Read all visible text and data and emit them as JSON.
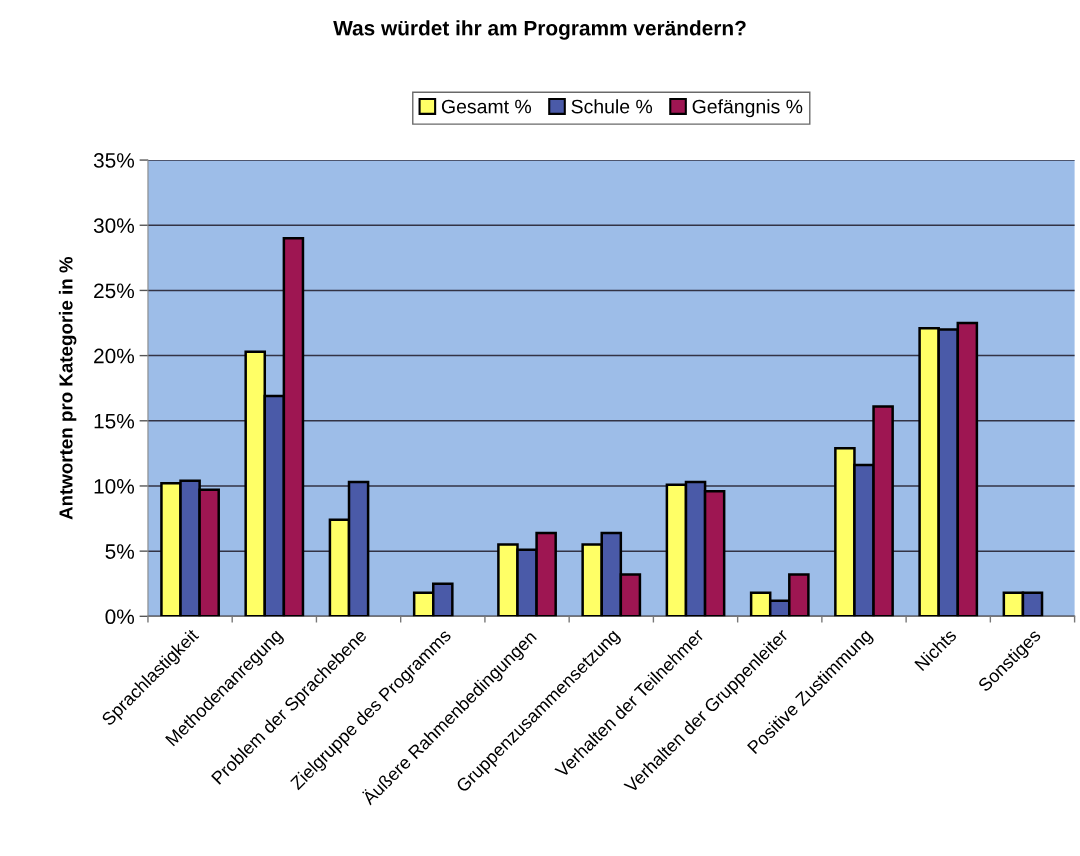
{
  "chart_data": {
    "type": "bar",
    "title": "Was würdet ihr am Programm verändern?",
    "ylabel": "Antworten pro Kategorie in %",
    "categories": [
      "Sprachlastigkeit",
      "Methodenanregung",
      "Problem der Sprachebene",
      "Zielgruppe des Programms",
      "Äußere Rahmenbedingungen",
      "Gruppenzusammensetzung",
      "Verhalten der Teilnehmer",
      "Verhalten der Gruppenleiter",
      "Positive Zustimmung",
      "Nichts",
      "Sonstiges"
    ],
    "series": [
      {
        "name": "Gesamt %",
        "color": "#ffff66",
        "values": [
          10.2,
          20.3,
          7.4,
          1.8,
          5.5,
          5.5,
          10.1,
          1.8,
          12.9,
          22.1,
          1.8
        ]
      },
      {
        "name": "Schule %",
        "color": "#4a5aa8",
        "values": [
          10.4,
          16.9,
          10.3,
          2.5,
          5.1,
          6.4,
          10.3,
          1.2,
          11.6,
          22.0,
          1.8
        ]
      },
      {
        "name": "Gefängnis %",
        "color": "#9e1652",
        "values": [
          9.7,
          29.0,
          null,
          null,
          6.4,
          3.2,
          9.6,
          3.2,
          16.1,
          22.5,
          null
        ]
      }
    ],
    "ylim": [
      0,
      35
    ],
    "yticks": [
      {
        "value": 0,
        "label": "0%"
      },
      {
        "value": 5,
        "label": "5%"
      },
      {
        "value": 10,
        "label": "10%"
      },
      {
        "value": 15,
        "label": "15%"
      },
      {
        "value": 20,
        "label": "20%"
      },
      {
        "value": 25,
        "label": "25%"
      },
      {
        "value": 30,
        "label": "30%"
      },
      {
        "value": 35,
        "label": "35%"
      }
    ],
    "grid": "y",
    "legend": "top"
  }
}
